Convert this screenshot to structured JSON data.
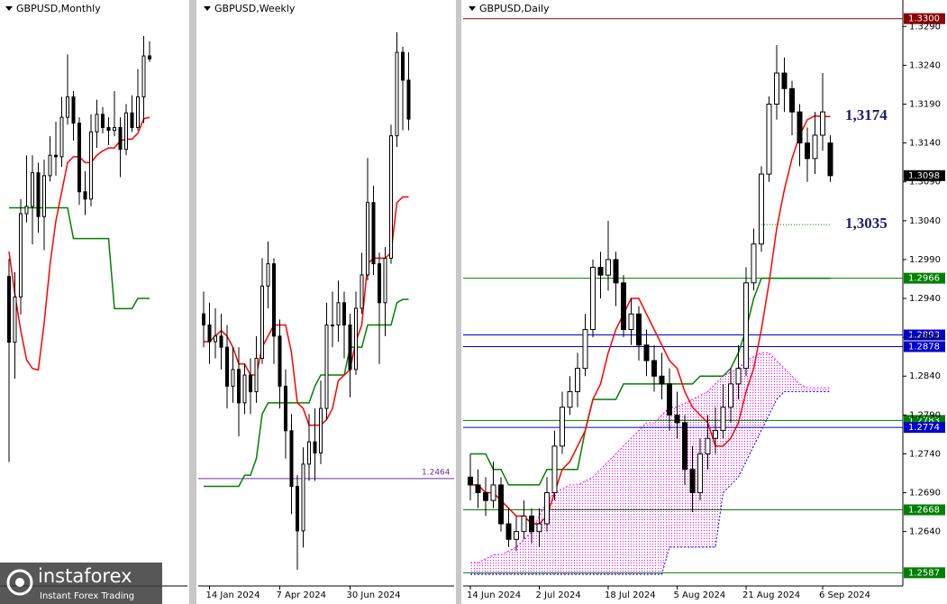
{
  "chart_data": [
    {
      "type": "candlestick",
      "title": "GBPUSD,Monthly",
      "ylim": [
        0.9501,
        1.3513
      ],
      "bull_color": "#ffffff",
      "bear_color": "#000000",
      "tenkan_color": "#ff0000",
      "kijun_color": "#008000",
      "ohlc": [
        [
          1.162,
          1.174,
          1.035,
          1.117
        ],
        [
          1.117,
          1.165,
          1.092,
          1.148
        ],
        [
          1.148,
          1.215,
          1.136,
          1.205
        ],
        [
          1.205,
          1.245,
          1.199,
          1.21
        ],
        [
          1.21,
          1.245,
          1.184,
          1.233
        ],
        [
          1.233,
          1.24,
          1.192,
          1.203
        ],
        [
          1.203,
          1.242,
          1.18,
          1.231
        ],
        [
          1.231,
          1.258,
          1.227,
          1.245
        ],
        [
          1.245,
          1.268,
          1.231,
          1.244
        ],
        [
          1.244,
          1.285,
          1.237,
          1.271
        ],
        [
          1.271,
          1.314,
          1.266,
          1.285
        ],
        [
          1.285,
          1.289,
          1.255,
          1.267
        ],
        [
          1.267,
          1.271,
          1.211,
          1.22
        ],
        [
          1.22,
          1.234,
          1.204,
          1.215
        ],
        [
          1.215,
          1.273,
          1.21,
          1.261
        ],
        [
          1.261,
          1.283,
          1.25,
          1.273
        ],
        [
          1.273,
          1.278,
          1.26,
          1.264
        ],
        [
          1.264,
          1.271,
          1.252,
          1.262
        ],
        [
          1.262,
          1.289,
          1.258,
          1.264
        ],
        [
          1.264,
          1.271,
          1.23,
          1.249
        ],
        [
          1.249,
          1.28,
          1.245,
          1.274
        ],
        [
          1.274,
          1.286,
          1.261,
          1.264
        ],
        [
          1.264,
          1.304,
          1.262,
          1.285
        ],
        [
          1.285,
          1.3266,
          1.267,
          1.313
        ],
        [
          1.313,
          1.323,
          1.309,
          1.311
        ]
      ],
      "tenkan": [
        1.179,
        1.15,
        1.125,
        1.105,
        1.099,
        1.098,
        1.13,
        1.17,
        1.2,
        1.22,
        1.24,
        1.244,
        1.244,
        1.24,
        1.24,
        1.245,
        1.248,
        1.25,
        1.25,
        1.255,
        1.256,
        1.256,
        1.26,
        1.27,
        1.271
      ],
      "kijun": [
        1.209,
        1.209,
        1.209,
        1.209,
        1.209,
        1.209,
        1.209,
        1.209,
        1.209,
        1.209,
        1.209,
        1.188,
        1.188,
        1.188,
        1.188,
        1.188,
        1.188,
        1.188,
        1.14,
        1.14,
        1.14,
        1.14,
        1.147,
        1.147,
        1.147
      ]
    },
    {
      "type": "candlestick",
      "title": "GBPUSD,Weekly",
      "ylim": [
        1.2271,
        1.3324
      ],
      "bull_color": "#ffffff",
      "bear_color": "#000000",
      "tenkan_color": "#ff0000",
      "kijun_color": "#008000",
      "categories": [
        null,
        "14 Jan 2024",
        null,
        null,
        null,
        null,
        null,
        null,
        null,
        null,
        null,
        null,
        null,
        "7 Apr 2024",
        null,
        null,
        null,
        null,
        null,
        null,
        null,
        null,
        null,
        null,
        null,
        "30 Jun 2024",
        null,
        null,
        null,
        null,
        null,
        null,
        null,
        null,
        null,
        null
      ],
      "ohlc": [
        [
          1.276,
          1.28,
          1.27,
          1.274
        ],
        [
          1.274,
          1.278,
          1.267,
          1.271
        ],
        [
          1.271,
          1.277,
          1.268,
          1.272
        ],
        [
          1.272,
          1.276,
          1.266,
          1.27
        ],
        [
          1.27,
          1.274,
          1.259,
          1.263
        ],
        [
          1.263,
          1.27,
          1.26,
          1.266
        ],
        [
          1.266,
          1.27,
          1.254,
          1.26
        ],
        [
          1.26,
          1.267,
          1.258,
          1.265
        ],
        [
          1.265,
          1.268,
          1.258,
          1.262
        ],
        [
          1.262,
          1.272,
          1.26,
          1.268
        ],
        [
          1.268,
          1.286,
          1.267,
          1.281
        ],
        [
          1.281,
          1.289,
          1.277,
          1.285
        ],
        [
          1.285,
          1.286,
          1.267,
          1.272
        ],
        [
          1.272,
          1.275,
          1.259,
          1.263
        ],
        [
          1.263,
          1.266,
          1.25,
          1.255
        ],
        [
          1.255,
          1.258,
          1.24,
          1.245
        ],
        [
          1.245,
          1.247,
          1.23,
          1.237
        ],
        [
          1.237,
          1.252,
          1.234,
          1.249
        ],
        [
          1.249,
          1.258,
          1.246,
          1.253
        ],
        [
          1.253,
          1.259,
          1.246,
          1.251
        ],
        [
          1.251,
          1.264,
          1.249,
          1.259
        ],
        [
          1.259,
          1.278,
          1.257,
          1.274
        ],
        [
          1.274,
          1.28,
          1.27,
          1.274
        ],
        [
          1.274,
          1.282,
          1.271,
          1.278
        ],
        [
          1.278,
          1.28,
          1.268,
          1.274
        ],
        [
          1.274,
          1.276,
          1.261,
          1.266
        ],
        [
          1.266,
          1.28,
          1.265,
          1.277
        ],
        [
          1.277,
          1.287,
          1.276,
          1.283
        ],
        [
          1.283,
          1.304,
          1.282,
          1.296
        ],
        [
          1.296,
          1.299,
          1.283,
          1.285
        ],
        [
          1.285,
          1.287,
          1.267,
          1.278
        ],
        [
          1.278,
          1.288,
          1.272,
          1.286
        ],
        [
          1.286,
          1.31,
          1.285,
          1.308
        ],
        [
          1.308,
          1.3266,
          1.306,
          1.323
        ],
        [
          1.323,
          1.324,
          1.309,
          1.318
        ],
        [
          1.318,
          1.323,
          1.309,
          1.311
        ]
      ],
      "tenkan": [
        1.271,
        1.271,
        1.272,
        1.273,
        1.272,
        1.27,
        1.267,
        1.267,
        1.265,
        1.265,
        1.27,
        1.272,
        1.274,
        1.274,
        1.274,
        1.269,
        1.26,
        1.259,
        1.256,
        1.256,
        1.256,
        1.257,
        1.259,
        1.264,
        1.265,
        1.266,
        1.271,
        1.274,
        1.285,
        1.286,
        1.286,
        1.286,
        1.287,
        1.296,
        1.297,
        1.297
      ],
      "kijun": [
        1.245,
        1.245,
        1.245,
        1.245,
        1.245,
        1.245,
        1.245,
        1.247,
        1.247,
        1.25,
        1.258,
        1.26,
        1.26,
        1.26,
        1.26,
        1.26,
        1.26,
        1.26,
        1.26,
        1.263,
        1.265,
        1.265,
        1.265,
        1.265,
        1.265,
        1.27,
        1.27,
        1.27,
        1.274,
        1.274,
        1.274,
        1.274,
        1.274,
        1.278,
        1.2786,
        1.2786
      ],
      "levels": [
        {
          "value": 1.2464,
          "label": "1.2464",
          "color": "#7030a0",
          "line": true
        }
      ]
    },
    {
      "type": "candlestick",
      "title": "GBPUSD,Daily",
      "ylim": [
        1.257,
        1.3324
      ],
      "bull_color": "#ffffff",
      "bear_color": "#000000",
      "tenkan_color": "#ff0000",
      "kijun_color": "#008000",
      "span_a_color": "#ff00ff",
      "span_b_color": "#0000ff",
      "categories": [
        "14 Jun 2024",
        null,
        null,
        null,
        null,
        null,
        null,
        null,
        null,
        "2 Jul 2024",
        null,
        null,
        null,
        null,
        null,
        null,
        null,
        null,
        "18 Jul 2024",
        null,
        null,
        null,
        null,
        null,
        null,
        null,
        null,
        "5 Aug 2024",
        null,
        null,
        null,
        null,
        null,
        null,
        null,
        null,
        "21 Aug 2024",
        null,
        null,
        null,
        null,
        null,
        null,
        null,
        null,
        null,
        "6 Sep 2024",
        null
      ],
      "yticks": [
        {
          "value": 1.264,
          "label": "1.2640"
        },
        {
          "value": 1.269,
          "label": "1.2690"
        },
        {
          "value": 1.274,
          "label": "1.2740"
        },
        {
          "value": 1.279,
          "label": "1.2790"
        },
        {
          "value": 1.284,
          "label": "1.2840"
        },
        {
          "value": 1.289,
          "label": "1.2890"
        },
        {
          "value": 1.294,
          "label": "1.2940"
        },
        {
          "value": 1.299,
          "label": "1.2990"
        },
        {
          "value": 1.304,
          "label": "1.3040"
        },
        {
          "value": 1.309,
          "label": "1.3090"
        },
        {
          "value": 1.314,
          "label": "1.3140"
        },
        {
          "value": 1.319,
          "label": "1.3190"
        },
        {
          "value": 1.324,
          "label": "1.3240"
        },
        {
          "value": 1.329,
          "label": "1.3290"
        }
      ],
      "ohlc": [
        [
          1.271,
          1.274,
          1.268,
          1.27
        ],
        [
          1.27,
          1.272,
          1.267,
          1.269
        ],
        [
          1.269,
          1.271,
          1.266,
          1.268
        ],
        [
          1.268,
          1.273,
          1.267,
          1.27
        ],
        [
          1.27,
          1.271,
          1.264,
          1.265
        ],
        [
          1.265,
          1.267,
          1.262,
          1.263
        ],
        [
          1.263,
          1.266,
          1.2615,
          1.264
        ],
        [
          1.264,
          1.268,
          1.263,
          1.266
        ],
        [
          1.266,
          1.267,
          1.2625,
          1.264
        ],
        [
          1.264,
          1.267,
          1.262,
          1.265
        ],
        [
          1.265,
          1.271,
          1.264,
          1.269
        ],
        [
          1.269,
          1.277,
          1.268,
          1.275
        ],
        [
          1.275,
          1.282,
          1.274,
          1.28
        ],
        [
          1.28,
          1.284,
          1.279,
          1.282
        ],
        [
          1.282,
          1.287,
          1.28,
          1.285
        ],
        [
          1.285,
          1.292,
          1.284,
          1.29
        ],
        [
          1.29,
          1.299,
          1.289,
          1.298
        ],
        [
          1.298,
          1.3,
          1.294,
          1.297
        ],
        [
          1.297,
          1.304,
          1.295,
          1.299
        ],
        [
          1.299,
          1.3,
          1.293,
          1.296
        ],
        [
          1.296,
          1.297,
          1.289,
          1.29
        ],
        [
          1.29,
          1.294,
          1.288,
          1.292
        ],
        [
          1.292,
          1.293,
          1.286,
          1.288
        ],
        [
          1.288,
          1.29,
          1.284,
          1.286
        ],
        [
          1.286,
          1.288,
          1.282,
          1.284
        ],
        [
          1.284,
          1.287,
          1.281,
          1.283
        ],
        [
          1.283,
          1.285,
          1.277,
          1.279
        ],
        [
          1.279,
          1.282,
          1.276,
          1.278
        ],
        [
          1.278,
          1.279,
          1.27,
          1.272
        ],
        [
          1.272,
          1.275,
          1.2665,
          1.269
        ],
        [
          1.269,
          1.276,
          1.268,
          1.274
        ],
        [
          1.274,
          1.279,
          1.272,
          1.276
        ],
        [
          1.276,
          1.28,
          1.274,
          1.277
        ],
        [
          1.277,
          1.283,
          1.276,
          1.28
        ],
        [
          1.28,
          1.285,
          1.278,
          1.283
        ],
        [
          1.283,
          1.288,
          1.281,
          1.285
        ],
        [
          1.285,
          1.298,
          1.284,
          1.296
        ],
        [
          1.296,
          1.303,
          1.295,
          1.301
        ],
        [
          1.301,
          1.311,
          1.3,
          1.31
        ],
        [
          1.31,
          1.32,
          1.309,
          1.319
        ],
        [
          1.319,
          1.3266,
          1.317,
          1.323
        ],
        [
          1.323,
          1.325,
          1.318,
          1.321
        ],
        [
          1.321,
          1.322,
          1.315,
          1.318
        ],
        [
          1.318,
          1.319,
          1.311,
          1.314
        ],
        [
          1.314,
          1.316,
          1.309,
          1.312
        ],
        [
          1.312,
          1.318,
          1.31,
          1.315
        ],
        [
          1.315,
          1.323,
          1.313,
          1.318
        ],
        [
          1.314,
          1.315,
          1.309,
          1.3098
        ]
      ],
      "tenkan": [
        1.27,
        1.27,
        1.269,
        1.269,
        1.268,
        1.267,
        1.266,
        1.266,
        1.265,
        1.265,
        1.266,
        1.269,
        1.272,
        1.273,
        1.275,
        1.277,
        1.281,
        1.283,
        1.287,
        1.29,
        1.292,
        1.294,
        1.294,
        1.292,
        1.29,
        1.288,
        1.286,
        1.285,
        1.282,
        1.28,
        1.279,
        1.278,
        1.275,
        1.275,
        1.276,
        1.278,
        1.282,
        1.285,
        1.29,
        1.296,
        1.303,
        1.308,
        1.312,
        1.315,
        1.317,
        1.3175,
        1.3174,
        1.3174
      ],
      "kijun": [
        1.274,
        1.274,
        1.274,
        1.272,
        1.272,
        1.27,
        1.27,
        1.27,
        1.27,
        1.27,
        1.272,
        1.272,
        1.272,
        1.272,
        1.272,
        1.277,
        1.281,
        1.281,
        1.281,
        1.281,
        1.283,
        1.283,
        1.283,
        1.283,
        1.283,
        1.283,
        1.283,
        1.283,
        1.283,
        1.283,
        1.284,
        1.284,
        1.284,
        1.284,
        1.285,
        1.287,
        1.29,
        1.294,
        1.2966,
        1.2966,
        1.2966,
        1.2966,
        1.2966,
        1.2966,
        1.2966,
        1.2966,
        1.2966,
        1.2966
      ],
      "span_a": [
        1.26,
        1.26,
        1.2605,
        1.261,
        1.261,
        1.2615,
        1.262,
        1.263,
        1.264,
        1.266,
        1.268,
        1.269,
        1.2695,
        1.27,
        1.27,
        1.2705,
        1.271,
        1.272,
        1.273,
        1.274,
        1.275,
        1.276,
        1.277,
        1.278,
        1.278,
        1.279,
        1.28,
        1.28,
        1.2805,
        1.281,
        1.2815,
        1.282,
        1.283,
        1.284,
        1.2845,
        1.285,
        1.286,
        1.2865,
        1.287,
        1.287,
        1.286,
        1.285,
        1.284,
        1.283,
        1.2825,
        1.2825,
        1.2825,
        1.2825
      ],
      "span_b": [
        1.2585,
        1.2585,
        1.2585,
        1.2585,
        1.2585,
        1.2585,
        1.2585,
        1.2585,
        1.2585,
        1.2585,
        1.2585,
        1.2585,
        1.2585,
        1.2585,
        1.2585,
        1.2585,
        1.2585,
        1.2585,
        1.2585,
        1.2585,
        1.2585,
        1.2585,
        1.2585,
        1.2585,
        1.2585,
        1.2585,
        1.262,
        1.262,
        1.262,
        1.262,
        1.262,
        1.262,
        1.262,
        1.269,
        1.27,
        1.271,
        1.273,
        1.275,
        1.277,
        1.279,
        1.281,
        1.282,
        1.282,
        1.282,
        1.282,
        1.282,
        1.282,
        1.282
      ],
      "levels": [
        {
          "value": 1.33,
          "label": "1.3300",
          "color": "#8b0000",
          "line": true
        },
        {
          "value": 1.3098,
          "label": "1.3098",
          "color": "#000000",
          "line": false
        },
        {
          "value": 1.2966,
          "label": "1.2966",
          "color": "#008000",
          "line": true
        },
        {
          "value": 1.2893,
          "label": "1.2893",
          "color": "#0000cd",
          "line": true
        },
        {
          "value": 1.2878,
          "label": "1.2878",
          "color": "#0000cd",
          "line": true
        },
        {
          "value": 1.2783,
          "label": "1.2783",
          "color": "#008000",
          "line": true
        },
        {
          "value": 1.2774,
          "label": "1.2774",
          "color": "#0000cd",
          "line": true
        },
        {
          "value": 1.2668,
          "label": "1.2668",
          "color": "#008000",
          "line": true
        },
        {
          "value": 1.2587,
          "label": "1.2587",
          "color": "#008000",
          "line": true
        }
      ],
      "annotations": [
        {
          "text": "1,3174",
          "value": 1.3174
        },
        {
          "text": "1,3035",
          "value": 1.3035
        }
      ]
    }
  ],
  "logo": {
    "name": "instaforex",
    "tagline": "Instant Forex Trading"
  }
}
